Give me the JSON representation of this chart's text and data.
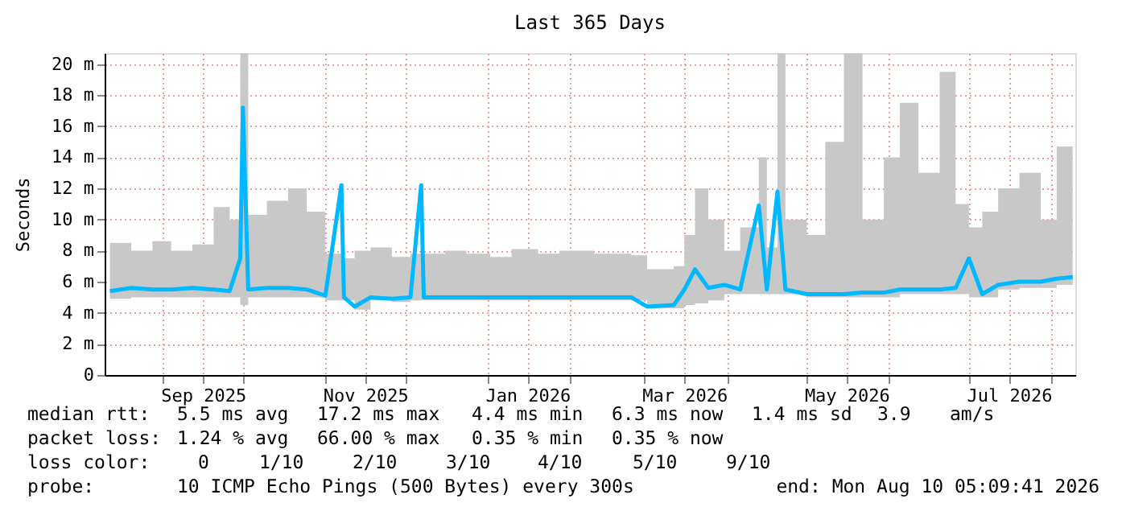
{
  "chart_data": {
    "type": "line",
    "title": "Last 365 Days",
    "ylabel": "Seconds",
    "xlim": [
      "2025-08-10",
      "2026-08-10"
    ],
    "xticks": [
      {
        "value": "2025-09-01",
        "label": null
      },
      {
        "value": "2025-09-16",
        "label": "Sep 2025"
      },
      {
        "value": "2025-10-01",
        "label": null
      },
      {
        "value": "2025-11-01",
        "label": null
      },
      {
        "value": "2025-11-16",
        "label": "Nov 2025"
      },
      {
        "value": "2025-12-01",
        "label": null
      },
      {
        "value": "2026-01-01",
        "label": null
      },
      {
        "value": "2026-01-16",
        "label": "Jan 2026"
      },
      {
        "value": "2026-02-01",
        "label": null
      },
      {
        "value": "2026-03-01",
        "label": null
      },
      {
        "value": "2026-03-16",
        "label": "Mar 2026"
      },
      {
        "value": "2026-04-01",
        "label": null
      },
      {
        "value": "2026-05-01",
        "label": null
      },
      {
        "value": "2026-05-16",
        "label": "May 2026"
      },
      {
        "value": "2026-06-01",
        "label": null
      },
      {
        "value": "2026-07-01",
        "label": null
      },
      {
        "value": "2026-07-16",
        "label": "Jul 2026"
      },
      {
        "value": "2026-08-01",
        "label": null
      }
    ],
    "ylim": [
      0,
      20.7
    ],
    "yticks": [
      0,
      {
        "value": 2,
        "label": "2 m"
      },
      {
        "value": 4,
        "label": "4 m"
      },
      {
        "value": 6,
        "label": "6 m"
      },
      {
        "value": 8,
        "label": "8 m"
      },
      {
        "value": 10,
        "label": "10 m"
      },
      {
        "value": 12,
        "label": "12 m"
      },
      {
        "value": 14,
        "label": "14 m"
      },
      {
        "value": 16,
        "label": "16 m"
      },
      {
        "value": 18,
        "label": "18 m"
      },
      {
        "value": 20,
        "label": "20 m"
      }
    ],
    "grid": true,
    "x": [
      "2025-08-12",
      "2025-08-20",
      "2025-08-28",
      "2025-09-04",
      "2025-09-12",
      "2025-09-20",
      "2025-09-26",
      "2025-09-30",
      "2025-10-01",
      "2025-10-03",
      "2025-10-10",
      "2025-10-18",
      "2025-10-25",
      "2025-11-01",
      "2025-11-07",
      "2025-11-08",
      "2025-11-12",
      "2025-11-18",
      "2025-11-26",
      "2025-12-03",
      "2025-12-07",
      "2025-12-08",
      "2025-12-16",
      "2025-12-24",
      "2026-01-02",
      "2026-01-10",
      "2026-01-20",
      "2026-01-28",
      "2026-02-10",
      "2026-02-24",
      "2026-03-02",
      "2026-03-12",
      "2026-03-16",
      "2026-03-20",
      "2026-03-25",
      "2026-03-31",
      "2026-04-06",
      "2026-04-13",
      "2026-04-16",
      "2026-04-20",
      "2026-04-23",
      "2026-05-01",
      "2026-05-08",
      "2026-05-15",
      "2026-05-22",
      "2026-05-30",
      "2026-06-05",
      "2026-06-12",
      "2026-06-20",
      "2026-06-26",
      "2026-07-01",
      "2026-07-06",
      "2026-07-12",
      "2026-07-20",
      "2026-07-28",
      "2026-08-03",
      "2026-08-09"
    ],
    "series": [
      {
        "color": "#00b8ff",
        "values": [
          5.4,
          5.6,
          5.5,
          5.5,
          5.6,
          5.5,
          5.4,
          7.5,
          17.2,
          5.5,
          5.6,
          5.6,
          5.5,
          5.1,
          12.2,
          5.0,
          4.4,
          5.0,
          4.9,
          5.0,
          12.2,
          5.0,
          5.0,
          5.0,
          5.0,
          5.0,
          5.0,
          5.0,
          5.0,
          5.0,
          4.4,
          4.5,
          5.5,
          6.8,
          5.6,
          5.8,
          5.5,
          10.9,
          5.5,
          11.8,
          5.5,
          5.2,
          5.2,
          5.2,
          5.3,
          5.3,
          5.5,
          5.5,
          5.5,
          5.6,
          7.5,
          5.2,
          5.8,
          6.0,
          6.0,
          6.2,
          6.3
        ],
        "lower": [
          4.9,
          5.0,
          5.0,
          5.0,
          5.0,
          5.0,
          5.0,
          4.5,
          4.5,
          5.0,
          5.0,
          5.0,
          5.0,
          4.8,
          4.8,
          4.8,
          4.2,
          4.8,
          4.7,
          4.8,
          4.8,
          4.8,
          4.8,
          4.8,
          4.8,
          4.8,
          4.8,
          4.8,
          4.8,
          4.8,
          4.3,
          4.3,
          4.5,
          4.6,
          4.8,
          5.2,
          5.2,
          5.2,
          5.2,
          5.2,
          5.2,
          5.0,
          5.0,
          5.0,
          5.0,
          5.0,
          5.2,
          5.2,
          5.2,
          5.2,
          5.0,
          5.0,
          5.5,
          5.6,
          5.6,
          5.8,
          5.9
        ],
        "upper": [
          8.5,
          8.0,
          8.6,
          8.0,
          8.4,
          10.8,
          10.0,
          20.7,
          20.7,
          10.3,
          11.2,
          12.0,
          10.5,
          7.8,
          12.3,
          7.5,
          8.0,
          8.2,
          7.6,
          7.8,
          12.3,
          7.8,
          8.0,
          7.8,
          7.6,
          8.1,
          7.8,
          8.0,
          7.8,
          7.7,
          6.8,
          7.0,
          9.0,
          12.0,
          10.0,
          8.0,
          9.5,
          14.0,
          8.2,
          20.7,
          10.0,
          9.0,
          15.0,
          20.7,
          10.0,
          14.0,
          17.5,
          13.0,
          19.5,
          11.0,
          9.5,
          10.5,
          12.0,
          13.0,
          10.0,
          14.7,
          8.0
        ]
      }
    ],
    "annotations": [
      "median rtt:",
      "5.5 ms avg",
      "17.2 ms max",
      "4.4 ms min",
      "6.3 ms now",
      "1.4 ms sd",
      "3.9",
      "am/s",
      "packet loss:",
      "1.24 % avg",
      "66.00 % max",
      "0.35 % min",
      "0.35 % now",
      "loss color:",
      "0",
      "1/10",
      "2/10",
      "3/10",
      "4/10",
      "5/10",
      "9/10",
      "probe:",
      "10 ICMP Echo Pings (500 Bytes) every 300s",
      "end: Mon Aug 10 05:09:41 2026"
    ]
  }
}
